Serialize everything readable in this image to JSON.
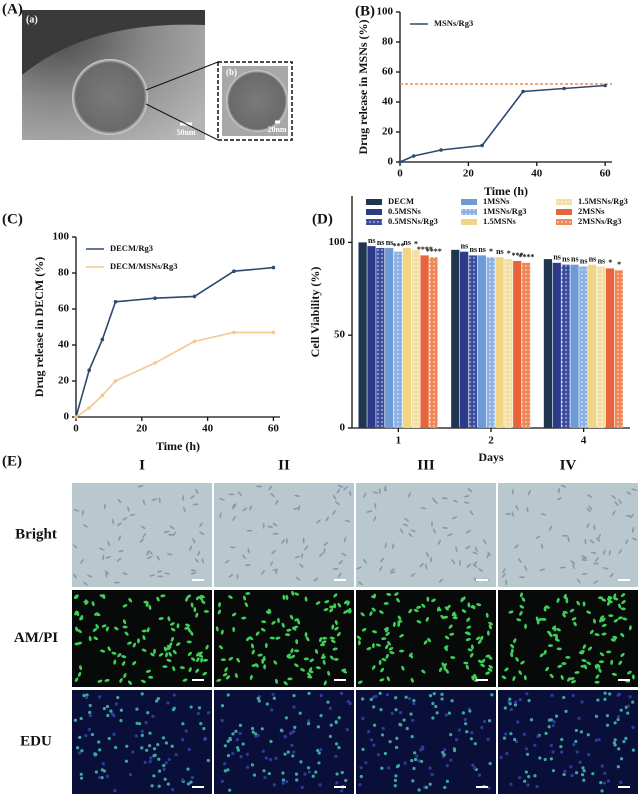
{
  "figure": {
    "panel_a": {
      "label": "(A)",
      "image_a": "(a)",
      "image_b": "(b)",
      "scale_a": "50nm",
      "scale_b": "20nm"
    },
    "panel_e": {
      "label": "(E)",
      "columns": [
        "I",
        "II",
        "III",
        "IV"
      ],
      "rows": [
        "Bright",
        "AM/PI",
        "EDU"
      ]
    }
  },
  "chart_data": [
    {
      "type": "line",
      "panel_label": "(B)",
      "xlabel": "Time (h)",
      "ylabel": "Drug release in MSNs (%)",
      "x": [
        0,
        4,
        12,
        24,
        36,
        48,
        60
      ],
      "xlim": [
        0,
        62
      ],
      "xticks": [
        0,
        20,
        40,
        60
      ],
      "ylim": [
        0,
        100
      ],
      "yticks": [
        0,
        20,
        40,
        60,
        80,
        100
      ],
      "series": [
        {
          "name": "MSNs/Rg3",
          "color": "#2e4a6e",
          "values": [
            0,
            4,
            8,
            11,
            47,
            49,
            51
          ]
        }
      ],
      "reference_line": {
        "value": 52,
        "color": "#e8752e"
      },
      "legend": "upper left"
    },
    {
      "type": "line",
      "panel_label": "(C)",
      "xlabel": "Time (h)",
      "ylabel": "Drug release in DECM (%)",
      "x": [
        0,
        4,
        8,
        12,
        24,
        36,
        48,
        60
      ],
      "xlim": [
        0,
        62
      ],
      "xticks": [
        0,
        20,
        40,
        60
      ],
      "ylim": [
        0,
        100
      ],
      "yticks": [
        0,
        20,
        40,
        60,
        80,
        100
      ],
      "series": [
        {
          "name": "DECM/Rg3",
          "color": "#2e4a6e",
          "values": [
            0,
            26,
            43,
            64,
            66,
            67,
            81,
            83
          ]
        },
        {
          "name": "DECM/MSNs/Rg3",
          "color": "#f2c98e",
          "values": [
            0,
            5,
            12,
            20,
            30,
            42,
            47,
            47
          ]
        }
      ],
      "legend": "upper left"
    },
    {
      "type": "bar",
      "panel_label": "(D)",
      "xlabel": "Days",
      "ylabel": "Cell Viability (%)",
      "categories": [
        "1",
        "2",
        "4"
      ],
      "ylim": [
        0,
        125
      ],
      "yticks": [
        0,
        50,
        100
      ],
      "legend": "upper",
      "series": [
        {
          "name": "DECM",
          "color": "#1f3550",
          "values": [
            100,
            96,
            91
          ]
        },
        {
          "name": "0.5MSNs",
          "color": "#2c3a8a",
          "values": [
            98,
            95,
            89
          ],
          "significance": [
            "ns",
            "ns",
            "ns"
          ]
        },
        {
          "name": "0.5MSNs/Rg3",
          "color": "#3b4c9e",
          "pattern": "dots",
          "values": [
            97,
            93,
            88
          ],
          "significance": [
            "ns",
            "ns",
            "ns"
          ]
        },
        {
          "name": "1MSNs",
          "color": "#6e9bd6",
          "values": [
            97,
            93,
            88
          ],
          "significance": [
            "ns",
            "ns",
            "ns"
          ]
        },
        {
          "name": "1MSNs/Rg3",
          "color": "#8bb0e4",
          "pattern": "dots",
          "values": [
            95,
            92,
            87
          ],
          "significance": [
            "***",
            "*",
            "ns"
          ]
        },
        {
          "name": "1.5MSNs",
          "color": "#f0d585",
          "values": [
            97,
            92,
            88
          ],
          "significance": [
            "ns",
            "ns",
            "ns"
          ]
        },
        {
          "name": "1.5MSNs/Rg3",
          "color": "#f3dfa2",
          "pattern": "dots",
          "values": [
            96,
            91,
            87
          ],
          "significance": [
            "*",
            "*",
            "ns"
          ]
        },
        {
          "name": "2MSNs",
          "color": "#e8643c",
          "values": [
            93,
            90,
            86
          ],
          "significance": [
            "****",
            "***",
            "*"
          ]
        },
        {
          "name": "2MSNs/Rg3",
          "color": "#ef8758",
          "pattern": "dots",
          "values": [
            92,
            89,
            85
          ],
          "significance": [
            "****",
            "****",
            "*"
          ]
        }
      ]
    }
  ]
}
